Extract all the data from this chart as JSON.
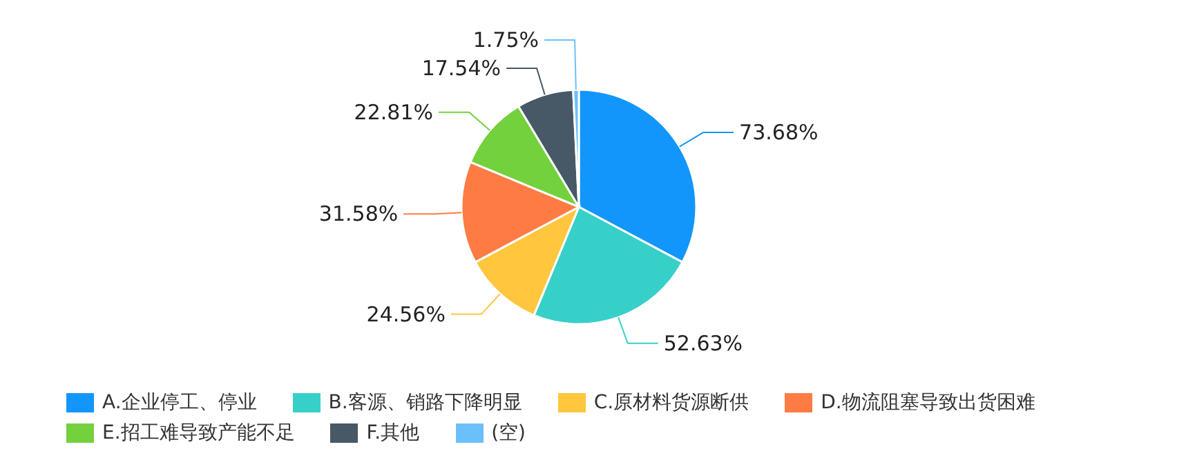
{
  "chart_data": {
    "type": "pie",
    "categories": [
      "A.企业停工、停业",
      "B.客源、销路下降明显",
      "C.原材料货源断供",
      "D.物流阻塞导致出货困难",
      "E.招工难导致产能不足",
      "F.其他",
      "(空)"
    ],
    "values": [
      73.68,
      52.63,
      24.56,
      31.58,
      22.81,
      17.54,
      1.75
    ],
    "colors": [
      "#1296fb",
      "#37d0c9",
      "#ffc63e",
      "#ff7b44",
      "#73d13d",
      "#475866",
      "#6bbffb"
    ],
    "value_labels": [
      "73.68%",
      "52.63%",
      "24.56%",
      "31.58%",
      "22.81%",
      "17.54%",
      "1.75%"
    ],
    "legend": "bottom"
  }
}
